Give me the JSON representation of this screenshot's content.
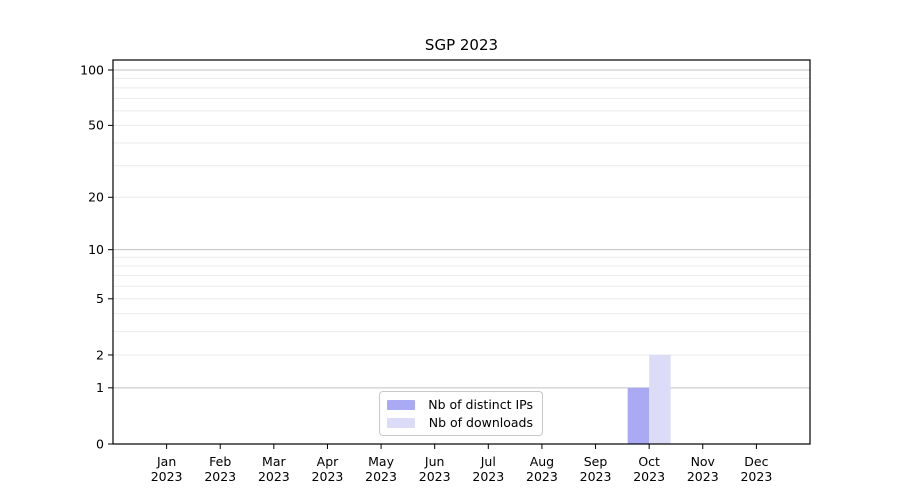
{
  "figure": {
    "background": "#ffffff",
    "axis_color": "#000000"
  },
  "chart_data": {
    "type": "bar",
    "title": "SGP 2023",
    "xlabel": "",
    "ylabel": "",
    "categories": [
      "Jan",
      "Feb",
      "Mar",
      "Apr",
      "May",
      "Jun",
      "Jul",
      "Aug",
      "Sep",
      "Oct",
      "Nov",
      "Dec"
    ],
    "year_label": "2023",
    "series": [
      {
        "name": "Nb of distinct IPs",
        "color": "#a9a9f4",
        "values": [
          0,
          0,
          0,
          0,
          0,
          0,
          0,
          0,
          0,
          1,
          0,
          0
        ]
      },
      {
        "name": "Nb of downloads",
        "color": "#dcdcf8",
        "values": [
          0,
          0,
          0,
          0,
          0,
          0,
          0,
          0,
          0,
          2,
          0,
          0
        ]
      }
    ],
    "yticks": [
      100,
      50,
      20,
      10,
      5,
      2,
      1,
      0
    ],
    "yscale": "log1p",
    "ylim": [
      0,
      113
    ],
    "grid": {
      "major_values": [
        1,
        10,
        100
      ],
      "minor_values": [
        2,
        3,
        4,
        5,
        6,
        7,
        8,
        9,
        20,
        30,
        40,
        50,
        60,
        70,
        80,
        90
      ],
      "major_color": "#c2c2c2",
      "minor_color": "#ebebeb"
    },
    "legend": {
      "position": "lower center"
    }
  }
}
